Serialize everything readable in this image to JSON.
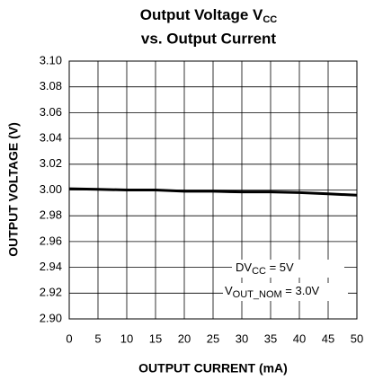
{
  "chart_data": {
    "type": "line",
    "title": {
      "text": "Output Voltage V",
      "sub": "CC",
      "line2": "vs. Output Current"
    },
    "x_label": "OUTPUT CURRENT (mA)",
    "y_label": "OUTPUT VOLTAGE (V)",
    "x": [
      0,
      5,
      10,
      15,
      20,
      25,
      30,
      35,
      40,
      45,
      50
    ],
    "series": [
      {
        "color": "#000000",
        "values": [
          3.001,
          3.0005,
          3.0,
          3.0,
          2.999,
          2.999,
          2.9985,
          2.9985,
          2.998,
          2.997,
          2.996
        ]
      }
    ],
    "xlim": [
      0,
      50
    ],
    "xticks": [
      0,
      5,
      10,
      15,
      20,
      25,
      30,
      35,
      40,
      45,
      50
    ],
    "ylim": [
      2.9,
      3.1
    ],
    "yticks": [
      {
        "value": 2.9,
        "label": "2.90"
      },
      {
        "value": 2.92,
        "label": "2.92"
      },
      {
        "value": 2.94,
        "label": "2.94"
      },
      {
        "value": 2.96,
        "label": "2.96"
      },
      {
        "value": 2.98,
        "label": "2.98"
      },
      {
        "value": 3.0,
        "label": "3.00"
      },
      {
        "value": 3.02,
        "label": "3.02"
      },
      {
        "value": 3.04,
        "label": "3.04"
      },
      {
        "value": 3.06,
        "label": "3.06"
      },
      {
        "value": 3.08,
        "label": "3.08"
      },
      {
        "value": 3.1,
        "label": "3.10"
      }
    ],
    "grid": true,
    "annotations": [
      {
        "text": "DV",
        "sub": "CC",
        "rest": " = 5V"
      },
      {
        "text": "V",
        "sub": "OUT_NOM",
        "rest": " = 3.0V"
      }
    ]
  }
}
